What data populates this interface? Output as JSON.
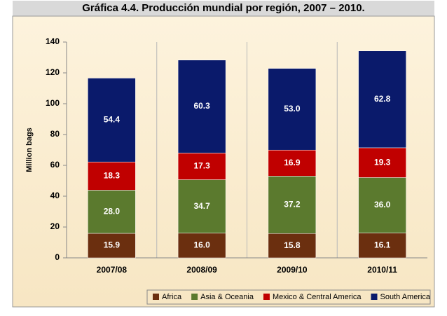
{
  "chart_data": {
    "type": "stacked_bar",
    "title": "Gráfica 4.4. Producción mundial por región, 2007 – 2010.",
    "ylabel": "Million bags",
    "categories": [
      "2007/08",
      "2008/09",
      "2009/10",
      "2010/11"
    ],
    "series": [
      {
        "name": "Africa",
        "color": "#6b2f0f",
        "values": [
          15.9,
          16.0,
          15.8,
          16.1
        ],
        "value_labels": [
          "15.9",
          "16.0",
          "15.8",
          "16.1"
        ]
      },
      {
        "name": "Asia & Oceania",
        "color": "#5b7a2e",
        "values": [
          28.0,
          34.7,
          37.2,
          36.0
        ],
        "value_labels": [
          "28.0",
          "34.7",
          "37.2",
          "36.0"
        ]
      },
      {
        "name": "Mexico & Central America",
        "color": "#c00000",
        "values": [
          18.3,
          17.3,
          16.9,
          19.3
        ],
        "value_labels": [
          "18.3",
          "17.3",
          "16.9",
          "19.3"
        ]
      },
      {
        "name": "South America",
        "color": "#0a1a6b",
        "values": [
          54.4,
          60.3,
          53.0,
          62.8
        ],
        "value_labels": [
          "54.4",
          "60.3",
          "53.0",
          "62.8"
        ]
      }
    ],
    "ylim": [
      0,
      140
    ],
    "yticks": [
      0,
      20,
      40,
      60,
      80,
      100,
      120,
      140
    ],
    "grid": false,
    "legend": "bottom"
  }
}
